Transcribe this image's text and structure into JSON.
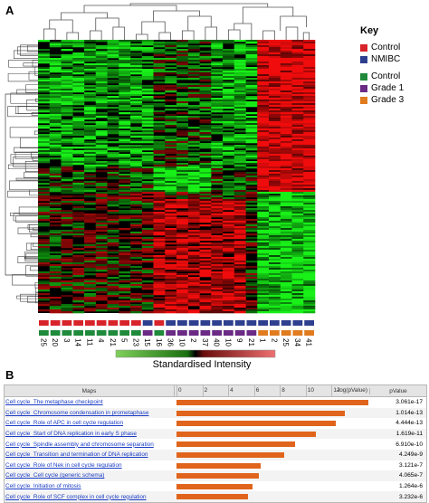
{
  "panel_a_label": "A",
  "panel_b_label": "B",
  "key": {
    "title": "Key",
    "entries": [
      {
        "label": "Control",
        "color": "#d8232a"
      },
      {
        "label": "NMIBC",
        "color": "#2e3f8f"
      },
      {
        "label": "Control",
        "color": "#1f8a3b"
      },
      {
        "label": "Grade 1",
        "color": "#6a2a85"
      },
      {
        "label": "Grade 3",
        "color": "#e07b1f"
      }
    ]
  },
  "heatmap": {
    "sample_numbers": [
      "25",
      "20",
      "3",
      "14",
      "11",
      "4",
      "21",
      "5",
      "23",
      "15",
      "16",
      "36",
      "10",
      "2",
      "37",
      "40",
      "10",
      "9",
      "21",
      "1",
      "2",
      "25",
      "34",
      "41"
    ],
    "row1_colors": [
      "#d8232a",
      "#d8232a",
      "#d8232a",
      "#d8232a",
      "#d8232a",
      "#d8232a",
      "#d8232a",
      "#d8232a",
      "#d8232a",
      "#2e3f8f",
      "#d8232a",
      "#2e3f8f",
      "#2e3f8f",
      "#2e3f8f",
      "#2e3f8f",
      "#2e3f8f",
      "#2e3f8f",
      "#2e3f8f",
      "#2e3f8f",
      "#2e3f8f",
      "#2e3f8f",
      "#2e3f8f",
      "#2e3f8f",
      "#2e3f8f"
    ],
    "row2_colors": [
      "#1f8a3b",
      "#1f8a3b",
      "#1f8a3b",
      "#1f8a3b",
      "#1f8a3b",
      "#1f8a3b",
      "#1f8a3b",
      "#1f8a3b",
      "#1f8a3b",
      "#6a2a85",
      "#1f8a3b",
      "#6a2a85",
      "#6a2a85",
      "#6a2a85",
      "#6a2a85",
      "#6a2a85",
      "#6a2a85",
      "#6a2a85",
      "#6a2a85",
      "#e07b1f",
      "#e07b1f",
      "#e07b1f",
      "#e07b1f",
      "#e07b1f"
    ],
    "scale_label": "Standardised Intensity"
  },
  "table": {
    "col_maps": "Maps",
    "col_pvalue": "pValue",
    "axis_label": "-log(pValue)",
    "axis_ticks": [
      "0",
      "2",
      "4",
      "6",
      "8",
      "10",
      "12"
    ],
    "axis_max": 14,
    "rows": [
      {
        "name": "Cell cycle_The metaphase checkpoint",
        "neglog": 16.5,
        "pvalue": "3.061e-17"
      },
      {
        "name": "Cell cycle_Chromosome condensation in prometaphase",
        "neglog": 13.0,
        "pvalue": "1.014e-13"
      },
      {
        "name": "Cell cycle_Role of APC in cell cycle regulation",
        "neglog": 12.35,
        "pvalue": "4.444e-13"
      },
      {
        "name": "Cell cycle_Start of DNA replication in early S phase",
        "neglog": 10.8,
        "pvalue": "1.619e-11"
      },
      {
        "name": "Cell cycle_Spindle assembly and chromosome separation",
        "neglog": 9.2,
        "pvalue": "6.910e-10"
      },
      {
        "name": "Cell cycle_Transition and termination of DNA replication",
        "neglog": 8.35,
        "pvalue": "4.249e-9"
      },
      {
        "name": "Cell cycle_Role of Nek in cell cycle regulation",
        "neglog": 6.5,
        "pvalue": "3.121e-7"
      },
      {
        "name": "Cell cycle_Cell cycle (generic schema)",
        "neglog": 6.4,
        "pvalue": "4.065e-7"
      },
      {
        "name": "Cell cycle_Initiation of mitosis",
        "neglog": 5.9,
        "pvalue": "1.264e-6"
      },
      {
        "name": "Cell cycle_Role of SCF complex in cell cycle regulation",
        "neglog": 5.5,
        "pvalue": "3.232e-6"
      }
    ]
  }
}
